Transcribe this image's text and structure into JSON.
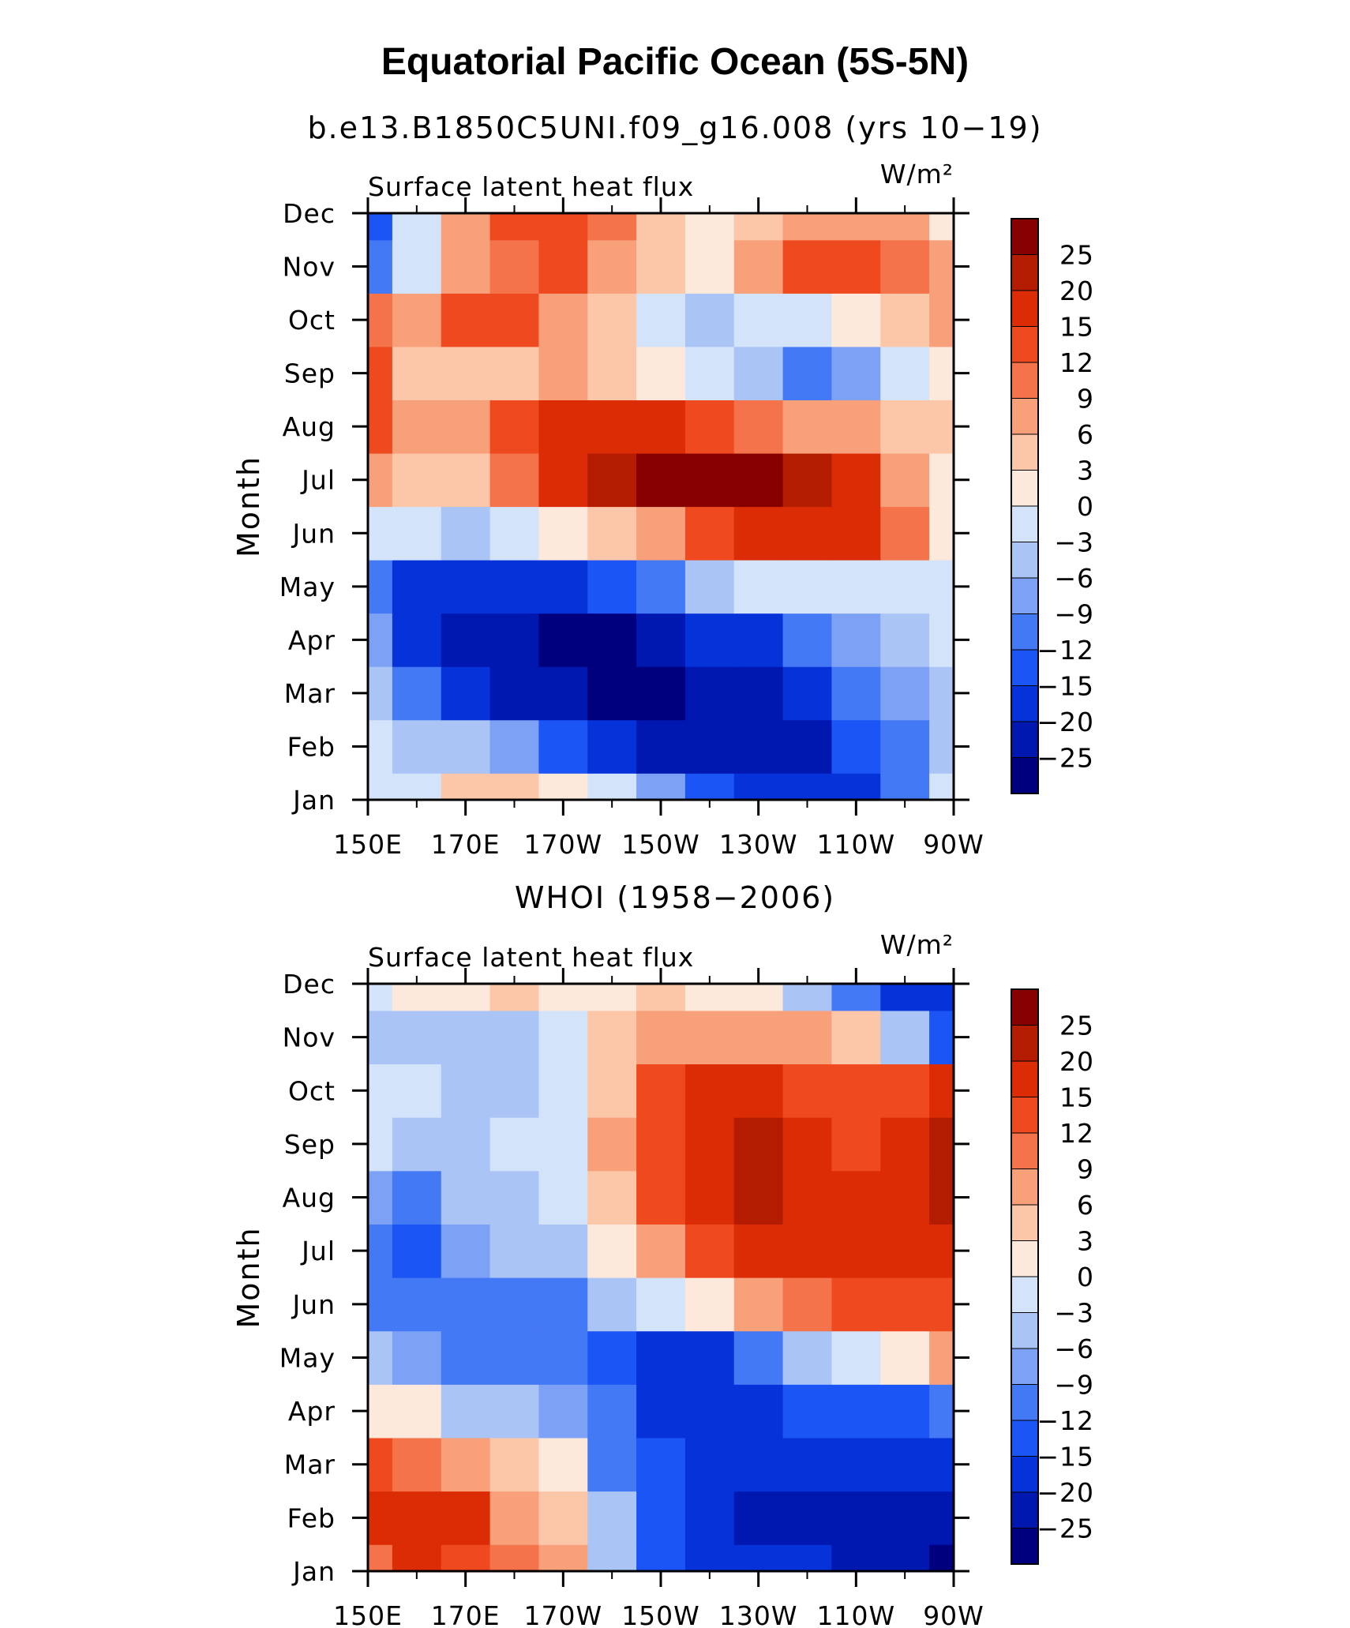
{
  "title": "Equatorial Pacific Ocean (5S-5N)",
  "colors": [
    "#00007f",
    "#0018b0",
    "#0632d9",
    "#1b55f5",
    "#4479f5",
    "#7da1f4",
    "#a9c4f5",
    "#d3e4fa",
    "#fde8dc",
    "#fcc6a8",
    "#f7a07a",
    "#f4734a",
    "#ef4a1f",
    "#dc2c05",
    "#b31c00",
    "#860000"
  ],
  "colorbar_labels": [
    "25",
    "20",
    "15",
    "12",
    "9",
    "6",
    "3",
    "0",
    "−3",
    "−6",
    "−9",
    "−12",
    "−15",
    "−20",
    "−25"
  ],
  "chart_data": [
    {
      "type": "heatmap",
      "subtitle": "b.e13.B1850C5UNI.f09_g16.008 (yrs 10−19)",
      "left_label": "Surface latent heat flux",
      "units": "W/m²",
      "xlabel": "",
      "ylabel": "Month",
      "x_ticks": [
        "150E",
        "170E",
        "170W",
        "150W",
        "130W",
        "110W",
        "90W"
      ],
      "y_ticks": [
        "Jan",
        "Feb",
        "Mar",
        "Apr",
        "May",
        "Jun",
        "Jul",
        "Aug",
        "Sep",
        "Oct",
        "Nov",
        "Dec"
      ],
      "x_values_deg_east": [
        150,
        160,
        170,
        180,
        190,
        200,
        210,
        220,
        230,
        240,
        250,
        260,
        270
      ],
      "levels": [
        -25,
        -20,
        -15,
        -12,
        -9,
        -6,
        -3,
        0,
        3,
        6,
        9,
        12,
        15,
        20,
        25
      ],
      "values": [
        [
          -3,
          -1,
          4,
          4,
          1,
          -3,
          -8,
          -14,
          -18,
          -18,
          -16,
          -10,
          -3
        ],
        [
          -3,
          -4,
          -5,
          -9,
          -14,
          -18,
          -22,
          -24,
          -24,
          -22,
          -15,
          -10,
          -4
        ],
        [
          -5,
          -10,
          -16,
          -22,
          -25,
          -28,
          -26,
          -24,
          -22,
          -18,
          -12,
          -7,
          -4
        ],
        [
          -8,
          -16,
          -22,
          -24,
          -26,
          -27,
          -24,
          -20,
          -16,
          -12,
          -8,
          -5,
          -3
        ],
        [
          -10,
          -18,
          -20,
          -18,
          -16,
          -14,
          -10,
          -6,
          -3,
          -2,
          -1,
          -1,
          -1
        ],
        [
          -1,
          -3,
          -5,
          -3,
          1,
          4,
          8,
          12,
          16,
          18,
          16,
          10,
          2
        ],
        [
          8,
          5,
          3,
          10,
          18,
          24,
          26,
          27,
          25,
          22,
          18,
          8,
          2
        ],
        [
          14,
          6,
          8,
          12,
          18,
          18,
          16,
          13,
          9,
          6,
          6,
          4,
          3
        ],
        [
          13,
          4,
          4,
          5,
          6,
          3,
          0,
          -2,
          -5,
          -10,
          -7,
          -2,
          1
        ],
        [
          10,
          6,
          13,
          14,
          7,
          3,
          -1,
          -4,
          -3,
          -1,
          2,
          5,
          8
        ],
        [
          -12,
          -2,
          8,
          10,
          12,
          8,
          3,
          2,
          8,
          14,
          12,
          9,
          6
        ],
        [
          -14,
          -3,
          6,
          12,
          14,
          10,
          4,
          2,
          4,
          8,
          8,
          6,
          2
        ]
      ]
    },
    {
      "type": "heatmap",
      "subtitle": "WHOI (1958−2006)",
      "left_label": "Surface latent heat flux",
      "units": "W/m²",
      "xlabel": "",
      "ylabel": "Month",
      "x_ticks": [
        "150E",
        "170E",
        "170W",
        "150W",
        "130W",
        "110W",
        "90W"
      ],
      "y_ticks": [
        "Jan",
        "Feb",
        "Mar",
        "Apr",
        "May",
        "Jun",
        "Jul",
        "Aug",
        "Sep",
        "Oct",
        "Nov",
        "Dec"
      ],
      "x_values_deg_east": [
        150,
        160,
        170,
        180,
        190,
        200,
        210,
        220,
        230,
        240,
        250,
        260,
        270
      ],
      "levels": [
        -25,
        -20,
        -15,
        -12,
        -9,
        -6,
        -3,
        0,
        3,
        6,
        9,
        12,
        15,
        20,
        25
      ],
      "values": [
        [
          10,
          16,
          14,
          10,
          6,
          -4,
          -14,
          -18,
          -20,
          -20,
          -22,
          -24,
          -26
        ],
        [
          16,
          18,
          16,
          8,
          4,
          -6,
          -14,
          -18,
          -22,
          -24,
          -22,
          -22,
          -22
        ],
        [
          12,
          10,
          8,
          4,
          0,
          -10,
          -14,
          -18,
          -20,
          -18,
          -18,
          -20,
          -18
        ],
        [
          2,
          0,
          -4,
          -6,
          -8,
          -12,
          -16,
          -18,
          -18,
          -15,
          -14,
          -14,
          -12
        ],
        [
          -5,
          -8,
          -12,
          -12,
          -12,
          -14,
          -16,
          -16,
          -12,
          -6,
          -2,
          0,
          6
        ],
        [
          -10,
          -12,
          -10,
          -10,
          -10,
          -6,
          -3,
          2,
          6,
          9,
          12,
          12,
          12
        ],
        [
          -12,
          -14,
          -8,
          -6,
          -5,
          2,
          6,
          12,
          16,
          18,
          18,
          18,
          16
        ],
        [
          -8,
          -12,
          -6,
          -4,
          -3,
          3,
          14,
          18,
          20,
          18,
          16,
          18,
          20
        ],
        [
          -3,
          -4,
          -4,
          -3,
          -2,
          6,
          14,
          18,
          20,
          16,
          14,
          18,
          22
        ],
        [
          -3,
          -2,
          -4,
          -4,
          -1,
          5,
          12,
          16,
          15,
          12,
          12,
          14,
          16
        ],
        [
          -6,
          -5,
          -6,
          -5,
          -1,
          4,
          6,
          6,
          8,
          8,
          4,
          -4,
          -14
        ],
        [
          -3,
          1,
          2,
          4,
          2,
          1,
          4,
          2,
          0,
          -6,
          -12,
          -18,
          -20
        ]
      ]
    }
  ]
}
